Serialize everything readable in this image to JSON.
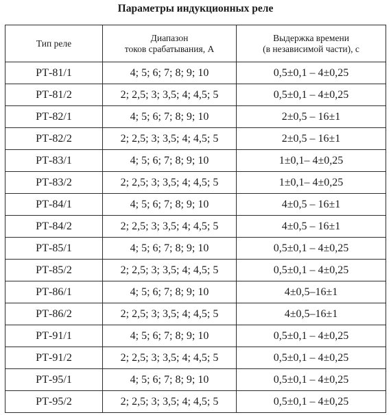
{
  "title": "Параметры индукционных реле",
  "table": {
    "headers": {
      "col1": "Тип реле",
      "col2_line1": "Диапазон",
      "col2_line2": "токов срабатывания, А",
      "col3_line1": "Выдержка времени",
      "col3_line2": "(в независимой части), с"
    },
    "rows": [
      {
        "type": "РТ-81/1",
        "range": "4; 5; 6; 7; 8; 9; 10",
        "delay": "0,5±0,1 – 4±0,25"
      },
      {
        "type": "РТ-81/2",
        "range": "2; 2,5; 3; 3,5; 4; 4,5; 5",
        "delay": "0,5±0,1 – 4±0,25"
      },
      {
        "type": "РТ-82/1",
        "range": "4; 5; 6; 7; 8; 9; 10",
        "delay": "2±0,5 – 16±1"
      },
      {
        "type": "РТ-82/2",
        "range": "2; 2,5; 3; 3,5; 4; 4,5; 5",
        "delay": "2±0,5 – 16±1"
      },
      {
        "type": "РТ-83/1",
        "range": "4; 5; 6; 7; 8; 9; 10",
        "delay": "1±0,1– 4±0,25"
      },
      {
        "type": "РТ-83/2",
        "range": "2; 2,5; 3; 3,5; 4; 4,5; 5",
        "delay": "1±0,1– 4±0,25"
      },
      {
        "type": "РТ-84/1",
        "range": "4; 5; 6; 7; 8; 9; 10",
        "delay": "4±0,5 – 16±1"
      },
      {
        "type": "РТ-84/2",
        "range": "2; 2,5; 3; 3,5; 4; 4,5; 5",
        "delay": "4±0,5 – 16±1"
      },
      {
        "type": "РТ-85/1",
        "range": "4; 5; 6; 7; 8; 9; 10",
        "delay": "0,5±0,1 – 4±0,25"
      },
      {
        "type": "РТ-85/2",
        "range": "2; 2,5; 3; 3,5; 4; 4,5; 5",
        "delay": "0,5±0,1 – 4±0,25"
      },
      {
        "type": "РТ-86/1",
        "range": "4; 5; 6; 7; 8; 9; 10",
        "delay": "4±0,5–16±1"
      },
      {
        "type": "РТ-86/2",
        "range": "2; 2,5; 3; 3,5; 4; 4,5; 5",
        "delay": "4±0,5–16±1"
      },
      {
        "type": "РТ-91/1",
        "range": "4; 5; 6; 7; 8; 9; 10",
        "delay": "0,5±0,1 – 4±0,25"
      },
      {
        "type": "РТ-91/2",
        "range": "2; 2,5; 3; 3,5; 4; 4,5; 5",
        "delay": "0,5±0,1 – 4±0,25"
      },
      {
        "type": "РТ-95/1",
        "range": "4; 5; 6; 7; 8; 9; 10",
        "delay": "0,5±0,1 – 4±0,25"
      },
      {
        "type": "РТ-95/2",
        "range": "2; 2,5; 3; 3,5; 4; 4,5; 5",
        "delay": "0,5±0,1 – 4±0,25"
      }
    ]
  }
}
